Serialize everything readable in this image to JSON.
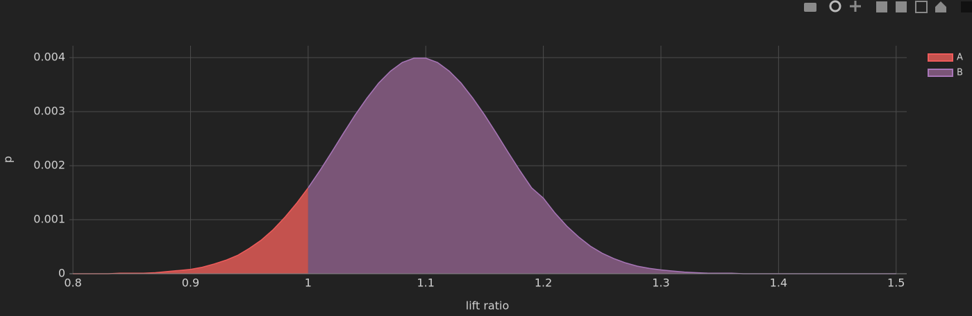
{
  "chart_data": {
    "type": "area",
    "x_label": "lift ratio",
    "y_label": "p",
    "xlim": [
      0.797,
      1.509
    ],
    "ylim": [
      0,
      0.00422
    ],
    "xticks": [
      0.8,
      0.9,
      1,
      1.1,
      1.2,
      1.3,
      1.4,
      1.5
    ],
    "yticks": [
      0,
      0.001,
      0.002,
      0.003,
      0.004
    ],
    "grid": true,
    "legend": "top-right",
    "series": [
      {
        "name": "A",
        "color": "#c4524e",
        "line_color": "#ef5b5b",
        "x": [
          0.8,
          0.81,
          0.82,
          0.83,
          0.84,
          0.85,
          0.86,
          0.87,
          0.88,
          0.89,
          0.9,
          0.91,
          0.92,
          0.93,
          0.94,
          0.95,
          0.96,
          0.97,
          0.98,
          0.99,
          1
        ],
        "values": [
          0,
          0,
          0,
          0,
          1e-05,
          1e-05,
          1e-05,
          2e-05,
          4e-05,
          6e-05,
          8e-05,
          0.00012,
          0.00018,
          0.00025,
          0.00034,
          0.00047,
          0.00062,
          0.00081,
          0.00104,
          0.0013,
          0.00159
        ]
      },
      {
        "name": "B",
        "color": "#7a5577",
        "line_color": "#a876b8",
        "x": [
          1,
          1.01,
          1.02,
          1.03,
          1.04,
          1.05,
          1.06,
          1.07,
          1.08,
          1.09,
          1.1,
          1.11,
          1.12,
          1.13,
          1.14,
          1.15,
          1.16,
          1.17,
          1.18,
          1.19,
          1.2,
          1.21,
          1.22,
          1.23,
          1.24,
          1.25,
          1.26,
          1.27,
          1.28,
          1.29,
          1.3,
          1.31,
          1.32,
          1.33,
          1.34,
          1.35,
          1.36,
          1.37,
          1.38,
          1.39,
          1.4,
          1.45,
          1.5
        ],
        "values": [
          0.00159,
          0.00191,
          0.00225,
          0.0026,
          0.00294,
          0.00325,
          0.00353,
          0.00375,
          0.00391,
          0.00399,
          0.00399,
          0.00391,
          0.00375,
          0.00353,
          0.00325,
          0.00294,
          0.0026,
          0.00225,
          0.00191,
          0.00159,
          0.0014,
          0.00112,
          0.00088,
          0.00068,
          0.00051,
          0.00038,
          0.00028,
          0.0002,
          0.00014,
          0.0001,
          7e-05,
          5e-05,
          3e-05,
          2e-05,
          1e-05,
          1e-05,
          1e-05,
          0,
          0,
          0,
          0,
          0,
          0
        ]
      }
    ]
  }
}
